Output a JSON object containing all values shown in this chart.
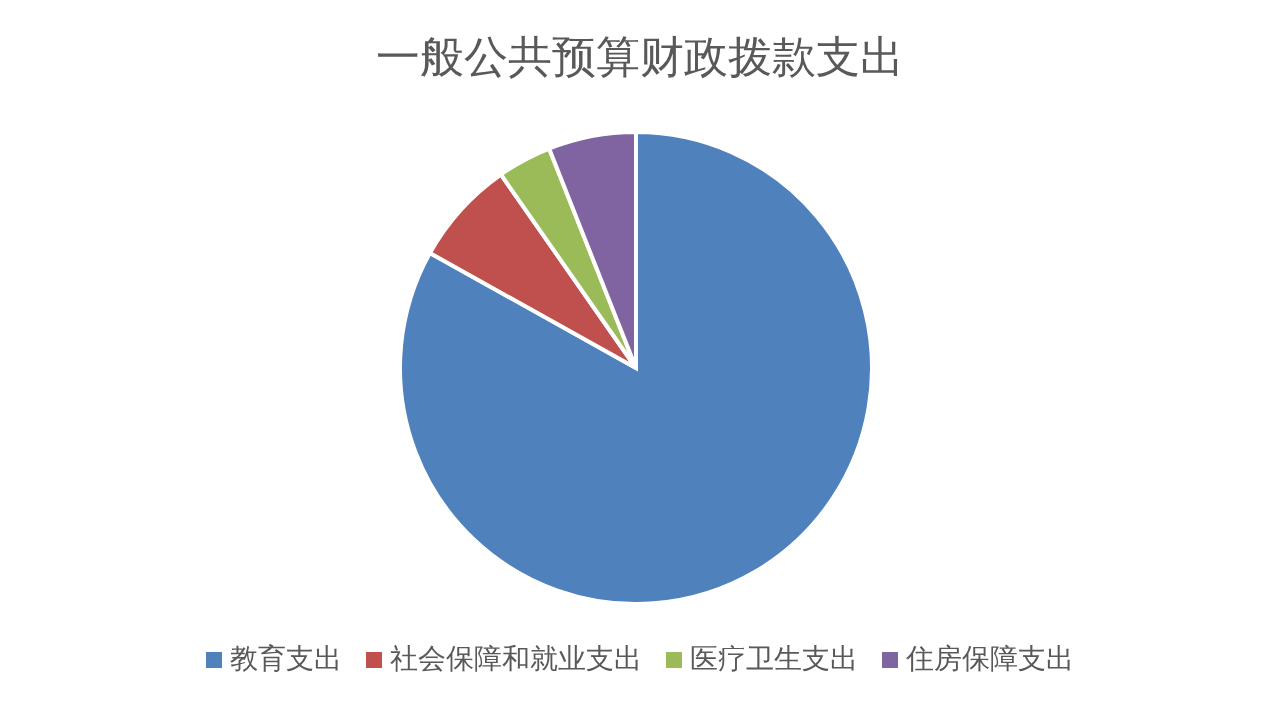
{
  "chart_data": {
    "type": "pie",
    "title": "一般公共预算财政拨款支出",
    "categories": [
      "教育支出",
      "社会保障和就业支出",
      "医疗卫生支出",
      "住房保障支出"
    ],
    "values": [
      83.1,
      7.2,
      3.7,
      6.0
    ],
    "colors": [
      "#4f81bd",
      "#c0504d",
      "#9bbb59",
      "#8064a2"
    ],
    "legend": "bottom"
  }
}
